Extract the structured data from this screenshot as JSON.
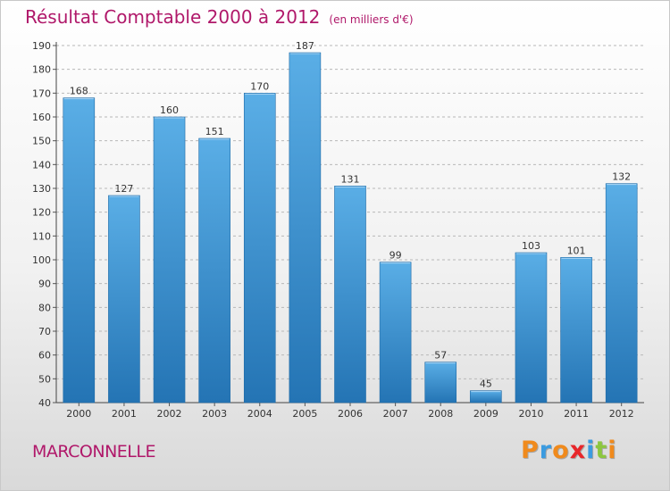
{
  "chart_data": {
    "type": "bar",
    "title": "Résultat Comptable 2000 à 2012",
    "subtitle": "(en milliers d'€)",
    "categories": [
      "2000",
      "2001",
      "2002",
      "2003",
      "2004",
      "2005",
      "2006",
      "2007",
      "2008",
      "2009",
      "2010",
      "2011",
      "2012"
    ],
    "values": [
      168,
      127,
      160,
      151,
      170,
      187,
      131,
      99,
      57,
      45,
      103,
      101,
      132
    ],
    "ylim": [
      40,
      190
    ],
    "yticks": [
      40,
      50,
      60,
      70,
      80,
      90,
      100,
      110,
      120,
      130,
      140,
      150,
      160,
      170,
      180,
      190
    ],
    "grid": true,
    "xlabel": "",
    "ylabel": ""
  },
  "location": "MARCONNELLE",
  "brand": {
    "letters": [
      "P",
      "r",
      "o",
      "x",
      "i",
      "t",
      "i"
    ],
    "colors": [
      "#f08a1c",
      "#3b9be0",
      "#f08a1c",
      "#e8262a",
      "#3b9be0",
      "#8cc63f",
      "#f08a1c"
    ]
  },
  "colors": {
    "title": "#b0186a",
    "bar_top": "#5aaee6",
    "bar_bottom": "#2474b4",
    "grid": "#b8b8b8"
  }
}
